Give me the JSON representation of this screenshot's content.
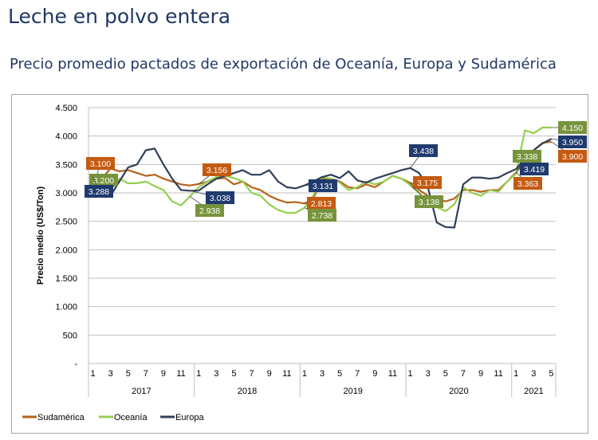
{
  "title": "Leche en polvo entera",
  "subtitle": "Precio promedio pactados de exportación de Oceanía, Europa y Sudamérica",
  "chart_data": {
    "type": "line",
    "ylabel": "Precio medio (US$/Ton)",
    "ylim": [
      0,
      4500
    ],
    "yticks": [
      "-",
      "500",
      "1.000",
      "1.500",
      "2.000",
      "2.500",
      "3.000",
      "3.500",
      "4.000",
      "4.500"
    ],
    "ytick_values": [
      0,
      500,
      1000,
      1500,
      2000,
      2500,
      3000,
      3500,
      4000,
      4500
    ],
    "years": [
      {
        "label": "2017",
        "months": 12
      },
      {
        "label": "2018",
        "months": 12
      },
      {
        "label": "2019",
        "months": 12
      },
      {
        "label": "2020",
        "months": 12
      },
      {
        "label": "2021",
        "months": 5
      }
    ],
    "month_tick_labels": [
      "1",
      "3",
      "5",
      "7",
      "9",
      "11"
    ],
    "grid": "horizontal",
    "legend": "bottom-left",
    "series": [
      {
        "name": "Sudamérica",
        "color": "#b8621b",
        "values": [
          3100,
          3250,
          3430,
          3380,
          3400,
          3350,
          3300,
          3320,
          3250,
          3200,
          3150,
          3130,
          3156,
          3200,
          3250,
          3260,
          3150,
          3200,
          3100,
          3050,
          2950,
          2880,
          2830,
          2840,
          2813,
          2900,
          3250,
          3250,
          3200,
          3100,
          3080,
          3150,
          3100,
          3200,
          3300,
          3250,
          3175,
          3050,
          2950,
          2900,
          2850,
          2900,
          3050,
          3050,
          3020,
          3050,
          3050,
          3200,
          3363,
          3600,
          3750,
          3880,
          3900
        ]
      },
      {
        "name": "Oceanía",
        "color": "#92d050",
        "values": [
          3200,
          3150,
          3050,
          3250,
          3170,
          3170,
          3200,
          3120,
          3050,
          2850,
          2780,
          2938,
          3100,
          3200,
          3280,
          3300,
          3260,
          3200,
          3000,
          2950,
          2800,
          2700,
          2650,
          2650,
          2738,
          2950,
          3280,
          3250,
          3180,
          3050,
          3100,
          3200,
          3150,
          3200,
          3300,
          3250,
          3138,
          3000,
          2800,
          2750,
          2680,
          2800,
          3100,
          3000,
          2950,
          3050,
          3020,
          3200,
          3338,
          4100,
          4050,
          4150,
          4150
        ]
      },
      {
        "name": "Europa",
        "color": "#2f4058",
        "values": [
          3288,
          3100,
          2950,
          3200,
          3450,
          3500,
          3750,
          3780,
          3500,
          3250,
          3050,
          3038,
          3040,
          3150,
          3250,
          3300,
          3350,
          3400,
          3320,
          3320,
          3400,
          3200,
          3100,
          3080,
          3131,
          3200,
          3280,
          3320,
          3260,
          3380,
          3220,
          3180,
          3250,
          3300,
          3350,
          3400,
          3438,
          3350,
          3100,
          2480,
          2400,
          2390,
          3150,
          3270,
          3270,
          3250,
          3270,
          3350,
          3419,
          3600,
          3750,
          3870,
          3950
        ]
      }
    ],
    "annotations": [
      {
        "series": "Sudamérica",
        "label": "3.100",
        "month": 0,
        "color": "#c55a11"
      },
      {
        "series": "Oceanía",
        "label": "3.200",
        "month": 0,
        "color": "#77933c"
      },
      {
        "series": "Europa",
        "label": "3.288",
        "month": 0,
        "color": "#1f3a6e"
      },
      {
        "series": "Sudamérica",
        "label": "3.156",
        "month": 12,
        "color": "#c55a11"
      },
      {
        "series": "Europa",
        "label": "3.038",
        "month": 11,
        "color": "#1f3a6e"
      },
      {
        "series": "Oceanía",
        "label": "2.938",
        "month": 11,
        "color": "#77933c"
      },
      {
        "series": "Europa",
        "label": "3.131",
        "month": 24,
        "color": "#1f3a6e"
      },
      {
        "series": "Sudamérica",
        "label": "2.813",
        "month": 24,
        "color": "#c55a11"
      },
      {
        "series": "Oceanía",
        "label": "2.738",
        "month": 24,
        "color": "#77933c"
      },
      {
        "series": "Europa",
        "label": "3.438",
        "month": 36,
        "color": "#1f3a6e"
      },
      {
        "series": "Sudamérica",
        "label": "3.175",
        "month": 36,
        "color": "#c55a11"
      },
      {
        "series": "Oceanía",
        "label": "3.138",
        "month": 36,
        "color": "#77933c"
      },
      {
        "series": "Oceanía",
        "label": "3.338",
        "month": 48,
        "color": "#77933c"
      },
      {
        "series": "Europa",
        "label": "3.419",
        "month": 48,
        "color": "#1f3a6e"
      },
      {
        "series": "Sudamérica",
        "label": "3.363",
        "month": 48,
        "color": "#c55a11"
      },
      {
        "series": "Oceanía",
        "label": "4.150",
        "month": 52,
        "color": "#77933c"
      },
      {
        "series": "Europa",
        "label": "3.950",
        "month": 52,
        "color": "#1f3a6e"
      },
      {
        "series": "Sudamérica",
        "label": "3.900",
        "month": 52,
        "color": "#c55a11"
      }
    ]
  }
}
